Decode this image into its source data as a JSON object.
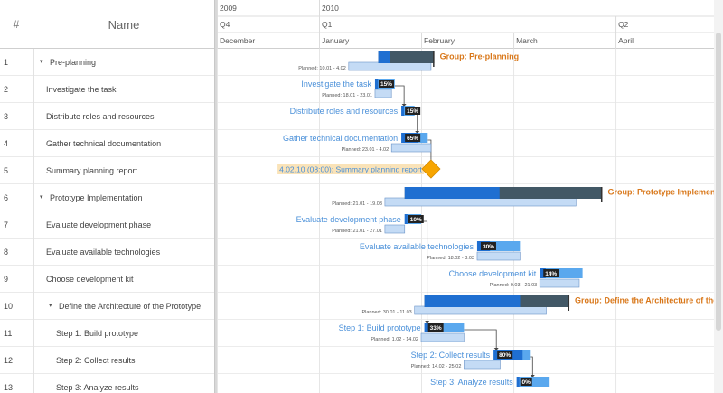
{
  "grid": {
    "num_header": "#",
    "name_header": "Name",
    "rows": [
      {
        "num": "1",
        "name": "Pre-planning",
        "level": 0,
        "group": true
      },
      {
        "num": "2",
        "name": "Investigate the task",
        "level": 1,
        "group": false
      },
      {
        "num": "3",
        "name": "Distribute roles and resources",
        "level": 1,
        "group": false
      },
      {
        "num": "4",
        "name": "Gather technical documentation",
        "level": 1,
        "group": false
      },
      {
        "num": "5",
        "name": "Summary planning report",
        "level": 1,
        "group": false
      },
      {
        "num": "6",
        "name": "Prototype Implementation",
        "level": 0,
        "group": true
      },
      {
        "num": "7",
        "name": "Evaluate development phase",
        "level": 1,
        "group": false
      },
      {
        "num": "8",
        "name": "Evaluate available technologies",
        "level": 1,
        "group": false
      },
      {
        "num": "9",
        "name": "Choose development kit",
        "level": 1,
        "group": false
      },
      {
        "num": "10",
        "name": "Define the Architecture of the Prototype",
        "level": 1,
        "group": true
      },
      {
        "num": "11",
        "name": "Step 1: Build prototype",
        "level": 2,
        "group": false
      },
      {
        "num": "12",
        "name": "Step 2: Collect results",
        "level": 2,
        "group": false
      },
      {
        "num": "13",
        "name": "Step 3: Analyze results",
        "level": 2,
        "group": false
      }
    ]
  },
  "timeline": {
    "years": [
      {
        "label": "2009",
        "start": "2009-12-01",
        "end": "2010-01-01"
      },
      {
        "label": "2010",
        "start": "2010-01-01",
        "end": "2010-04-25"
      }
    ],
    "quarters": [
      {
        "label": "Q4",
        "start": "2009-12-01",
        "end": "2010-01-01"
      },
      {
        "label": "Q1",
        "start": "2010-01-01",
        "end": "2010-04-01"
      },
      {
        "label": "Q2",
        "start": "2010-04-01",
        "end": "2010-04-25"
      }
    ],
    "months": [
      {
        "label": "December",
        "start": "2009-12-01",
        "end": "2010-01-01"
      },
      {
        "label": "January",
        "start": "2010-01-01",
        "end": "2010-02-01"
      },
      {
        "label": "February",
        "start": "2010-02-01",
        "end": "2010-03-01"
      },
      {
        "label": "March",
        "start": "2010-03-01",
        "end": "2010-04-01"
      },
      {
        "label": "April",
        "start": "2010-04-01",
        "end": "2010-04-25"
      }
    ],
    "tasks": [
      {
        "row": 0,
        "type": "group",
        "start": "2010-01-19",
        "end": "2010-02-05",
        "progress": 0.2,
        "label": "Group: Pre-planning",
        "planned": "Planned: 10.01 - 4.02",
        "planned_start": "2010-01-10",
        "planned_end": "2010-02-04"
      },
      {
        "row": 1,
        "type": "task",
        "start": "2010-01-18",
        "end": "2010-01-24",
        "progress": 0.15,
        "progress_label": "15%",
        "label": "Investigate the task",
        "planned": "Planned: 18.01 - 23.01",
        "planned_start": "2010-01-18",
        "planned_end": "2010-01-23"
      },
      {
        "row": 2,
        "type": "task",
        "start": "2010-01-26",
        "end": "2010-01-30",
        "progress": 0.15,
        "progress_label": "15%",
        "label": "Distribute roles and resources",
        "planned": null,
        "planned_start": null,
        "planned_end": null
      },
      {
        "row": 3,
        "type": "task",
        "start": "2010-01-26",
        "end": "2010-02-03",
        "progress": 0.65,
        "progress_label": "65%",
        "label": "Gather technical documentation",
        "planned": "Planned: 23.01 - 4.02",
        "planned_start": "2010-01-23",
        "planned_end": "2010-02-04"
      },
      {
        "row": 4,
        "type": "milestone",
        "start": "2010-02-04",
        "end": "2010-02-04",
        "label": "4.02.10 (08:00): Summary planning report"
      },
      {
        "row": 5,
        "type": "group",
        "start": "2010-01-27",
        "end": "2010-03-28",
        "progress": 0.48,
        "label": "Group: Prototype Implementation",
        "planned": "Planned: 21.01 - 19.03",
        "planned_start": "2010-01-21",
        "planned_end": "2010-03-20"
      },
      {
        "row": 6,
        "type": "task",
        "start": "2010-01-27",
        "end": "2010-02-01",
        "progress": 0.1,
        "progress_label": "10%",
        "label": "Evaluate development phase",
        "planned": "Planned: 21.01 - 27.01",
        "planned_start": "2010-01-21",
        "planned_end": "2010-01-27"
      },
      {
        "row": 7,
        "type": "task",
        "start": "2010-02-18",
        "end": "2010-03-03",
        "progress": 0.3,
        "progress_label": "30%",
        "label": "Evaluate available technologies",
        "planned": "Planned: 18.02 - 3.03",
        "planned_start": "2010-02-18",
        "planned_end": "2010-03-03"
      },
      {
        "row": 8,
        "type": "task",
        "start": "2010-03-09",
        "end": "2010-03-22",
        "progress": 0.14,
        "progress_label": "14%",
        "label": "Choose development kit",
        "planned": "Planned: 9.03 - 21.03",
        "planned_start": "2010-03-09",
        "planned_end": "2010-03-21"
      },
      {
        "row": 9,
        "type": "group",
        "start": "2010-02-02",
        "end": "2010-03-18",
        "progress": 0.66,
        "label": "Group: Define the Architecture of the Prototype",
        "planned": "Planned: 30.01 - 11.03",
        "planned_start": "2010-01-30",
        "planned_end": "2010-03-11"
      },
      {
        "row": 10,
        "type": "task",
        "start": "2010-02-02",
        "end": "2010-02-14",
        "progress": 0.33,
        "progress_label": "33%",
        "label": "Step 1: Build prototype",
        "planned": "Planned: 1.02 - 14.02",
        "planned_start": "2010-02-01",
        "planned_end": "2010-02-14"
      },
      {
        "row": 11,
        "type": "task",
        "start": "2010-02-23",
        "end": "2010-03-06",
        "progress": 0.8,
        "progress_label": "80%",
        "label": "Step 2: Collect results",
        "planned": "Planned: 14.02 - 25.02",
        "planned_start": "2010-02-14",
        "planned_end": "2010-02-25"
      },
      {
        "row": 12,
        "type": "task",
        "start": "2010-03-02",
        "end": "2010-03-12",
        "progress": 0.0,
        "progress_label": "0%",
        "label": "Step 3: Analyze results",
        "planned": null,
        "planned_start": null,
        "planned_end": null
      }
    ],
    "connectors": [
      {
        "from": 1,
        "to": 2
      },
      {
        "from": 2,
        "to": 3
      },
      {
        "from": 3,
        "to": 4
      },
      {
        "from": 6,
        "to": 10
      },
      {
        "from": 10,
        "to": 11
      },
      {
        "from": 11,
        "to": 12
      }
    ]
  },
  "colors": {
    "bar": "#1f6fd1",
    "bar_light": "#5aa8ee",
    "progress_dark": "#425866",
    "planned_fill": "#c4dbf5",
    "planned_stroke": "#6c93c7",
    "task_label": "#4a90d9",
    "group_label": "#d9781b",
    "milestone": "#f7a500",
    "milestone_label_bg": "#fae3b8",
    "badge": "#222222"
  }
}
